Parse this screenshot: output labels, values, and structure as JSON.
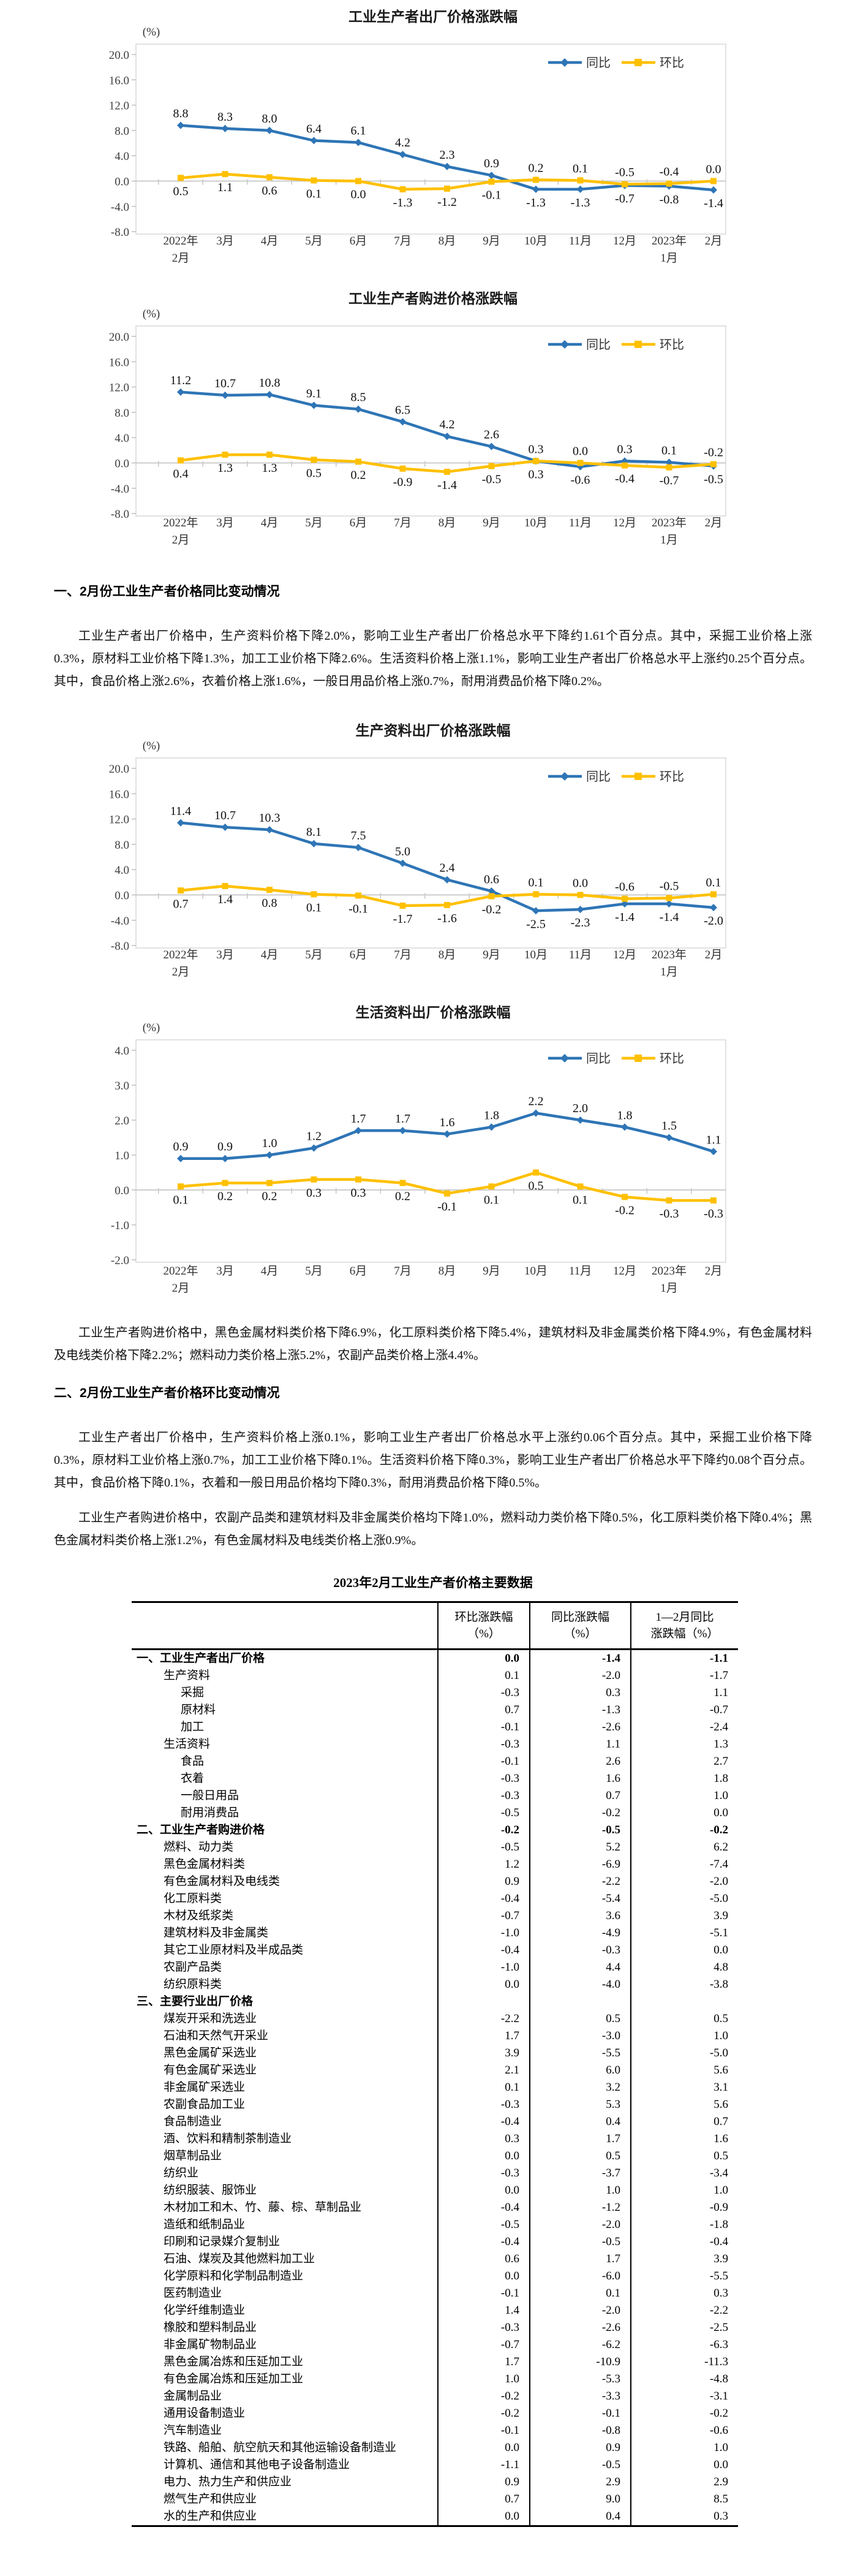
{
  "chart_data": [
    {
      "type": "line",
      "title": "工业生产者出厂价格涨跌幅",
      "unit": "(%)",
      "legend": [
        "同比",
        "环比"
      ],
      "legend_position": "top-right-inside",
      "grid": false,
      "y_ticks": [
        20,
        16,
        12,
        8,
        4,
        0,
        -4,
        -8
      ],
      "ylim": [
        -8,
        22
      ],
      "x_categories": [
        [
          "2022年",
          "2月"
        ],
        [
          "3月"
        ],
        [
          "4月"
        ],
        [
          "5月"
        ],
        [
          "6月"
        ],
        [
          "7月"
        ],
        [
          "8月"
        ],
        [
          "9月"
        ],
        [
          "10月"
        ],
        [
          "11月"
        ],
        [
          "12月"
        ],
        [
          "2023年",
          "1月"
        ],
        [
          "2月"
        ]
      ],
      "series": [
        {
          "name": "同比",
          "color": "#2E75B6",
          "marker": "diamond",
          "values": [
            8.8,
            8.3,
            8.0,
            6.4,
            6.1,
            4.2,
            2.3,
            0.9,
            -1.3,
            -1.3,
            -0.7,
            -0.8,
            -1.4
          ],
          "label_side": [
            "a",
            "a",
            "a",
            "a",
            "a",
            "a",
            "a",
            "a",
            "b",
            "b",
            "b",
            "b",
            "b"
          ]
        },
        {
          "name": "环比",
          "color": "#FFC000",
          "marker": "square",
          "values": [
            0.5,
            1.1,
            0.6,
            0.1,
            0.0,
            -1.3,
            -1.2,
            -0.1,
            0.2,
            0.1,
            -0.5,
            -0.4,
            0.0
          ],
          "label_side": [
            "b",
            "b",
            "b",
            "b",
            "b",
            "b",
            "b",
            "b",
            "a",
            "a",
            "a",
            "a",
            "a"
          ]
        }
      ]
    },
    {
      "type": "line",
      "title": "工业生产者购进价格涨跌幅",
      "unit": "(%)",
      "legend": [
        "同比",
        "环比"
      ],
      "legend_position": "top-right-inside",
      "grid": false,
      "y_ticks": [
        20,
        16,
        12,
        8,
        4,
        0,
        -4,
        -8
      ],
      "ylim": [
        -8,
        22
      ],
      "x_categories": [
        [
          "2022年",
          "2月"
        ],
        [
          "3月"
        ],
        [
          "4月"
        ],
        [
          "5月"
        ],
        [
          "6月"
        ],
        [
          "7月"
        ],
        [
          "8月"
        ],
        [
          "9月"
        ],
        [
          "10月"
        ],
        [
          "11月"
        ],
        [
          "12月"
        ],
        [
          "2023年",
          "1月"
        ],
        [
          "2月"
        ]
      ],
      "series": [
        {
          "name": "同比",
          "color": "#2E75B6",
          "marker": "diamond",
          "values": [
            11.2,
            10.7,
            10.8,
            9.1,
            8.5,
            6.5,
            4.2,
            2.6,
            0.3,
            -0.6,
            0.3,
            0.1,
            -0.5
          ],
          "label_side": [
            "a",
            "a",
            "a",
            "a",
            "a",
            "a",
            "a",
            "a",
            "a",
            "b",
            "a",
            "a",
            "b"
          ]
        },
        {
          "name": "环比",
          "color": "#FFC000",
          "marker": "square",
          "values": [
            0.4,
            1.3,
            1.3,
            0.5,
            0.2,
            -0.9,
            -1.4,
            -0.5,
            0.3,
            0.0,
            -0.4,
            -0.7,
            -0.2
          ],
          "label_side": [
            "b",
            "b",
            "b",
            "b",
            "b",
            "b",
            "b",
            "b",
            "b",
            "a",
            "b",
            "b",
            "a"
          ]
        }
      ]
    },
    {
      "type": "line",
      "title": "生产资料出厂价格涨跌幅",
      "unit": "(%)",
      "legend": [
        "同比",
        "环比"
      ],
      "legend_position": "top-right-inside",
      "grid": false,
      "y_ticks": [
        20,
        16,
        12,
        8,
        4,
        0,
        -4,
        -8
      ],
      "ylim": [
        -8,
        22
      ],
      "x_categories": [
        [
          "2022年",
          "2月"
        ],
        [
          "3月"
        ],
        [
          "4月"
        ],
        [
          "5月"
        ],
        [
          "6月"
        ],
        [
          "7月"
        ],
        [
          "8月"
        ],
        [
          "9月"
        ],
        [
          "10月"
        ],
        [
          "11月"
        ],
        [
          "12月"
        ],
        [
          "2023年",
          "1月"
        ],
        [
          "2月"
        ]
      ],
      "series": [
        {
          "name": "同比",
          "color": "#2E75B6",
          "marker": "diamond",
          "values": [
            11.4,
            10.7,
            10.3,
            8.1,
            7.5,
            5.0,
            2.4,
            0.6,
            -2.5,
            -2.3,
            -1.4,
            -1.4,
            -2.0
          ],
          "label_side": [
            "a",
            "a",
            "a",
            "a",
            "a",
            "a",
            "a",
            "a",
            "b",
            "b",
            "b",
            "b",
            "b"
          ]
        },
        {
          "name": "环比",
          "color": "#FFC000",
          "marker": "square",
          "values": [
            0.7,
            1.4,
            0.8,
            0.1,
            -0.1,
            -1.7,
            -1.6,
            -0.2,
            0.1,
            0.0,
            -0.6,
            -0.5,
            0.1
          ],
          "label_side": [
            "b",
            "b",
            "b",
            "b",
            "b",
            "b",
            "b",
            "b",
            "a",
            "a",
            "a",
            "a",
            "a"
          ]
        }
      ]
    },
    {
      "type": "line",
      "title": "生活资料出厂价格涨跌幅",
      "unit": "(%)",
      "legend": [
        "同比",
        "环比"
      ],
      "legend_position": "top-right-inside",
      "grid": false,
      "y_ticks": [
        4,
        3,
        2,
        1,
        0,
        -1,
        -2
      ],
      "ylim": [
        -2,
        4.5
      ],
      "x_categories": [
        [
          "2022年",
          "2月"
        ],
        [
          "3月"
        ],
        [
          "4月"
        ],
        [
          "5月"
        ],
        [
          "6月"
        ],
        [
          "7月"
        ],
        [
          "8月"
        ],
        [
          "9月"
        ],
        [
          "10月"
        ],
        [
          "11月"
        ],
        [
          "12月"
        ],
        [
          "2023年",
          "1月"
        ],
        [
          "2月"
        ]
      ],
      "series": [
        {
          "name": "同比",
          "color": "#2E75B6",
          "marker": "diamond",
          "values": [
            0.9,
            0.9,
            1.0,
            1.2,
            1.7,
            1.7,
            1.6,
            1.8,
            2.2,
            2.0,
            1.8,
            1.5,
            1.1
          ],
          "label_side": [
            "a",
            "a",
            "a",
            "a",
            "a",
            "a",
            "a",
            "a",
            "a",
            "a",
            "a",
            "a",
            "a"
          ]
        },
        {
          "name": "环比",
          "color": "#FFC000",
          "marker": "square",
          "values": [
            0.1,
            0.2,
            0.2,
            0.3,
            0.3,
            0.2,
            -0.1,
            0.1,
            0.5,
            0.1,
            -0.2,
            -0.3,
            -0.3
          ],
          "label_side": [
            "b",
            "b",
            "b",
            "b",
            "b",
            "b",
            "b",
            "b",
            "b",
            "b",
            "b",
            "b",
            "b"
          ]
        }
      ]
    }
  ],
  "sections": {
    "heading_yoy": "一、2月份工业生产者价格同比变动情况",
    "para_yoy": "工业生产者出厂价格中，生产资料价格下降2.0%，影响工业生产者出厂价格总水平下降约1.61个百分点。其中，采掘工业价格上涨0.3%，原材料工业价格下降1.3%，加工工业价格下降2.6%。生活资料价格上涨1.1%，影响工业生产者出厂价格总水平上涨约0.25个百分点。其中，食品价格上涨2.6%，衣着价格上涨1.6%，一般日用品价格上涨0.7%，耐用消费品价格下降0.2%。",
    "para_purchase_yoy": "工业生产者购进价格中，黑色金属材料类价格下降6.9%，化工原料类价格下降5.4%，建筑材料及非金属类价格下降4.9%，有色金属材料及电线类价格下降2.2%；燃料动力类价格上涨5.2%，农副产品类价格上涨4.4%。",
    "heading_mom": "二、2月份工业生产者价格环比变动情况",
    "para_mom": "工业生产者出厂价格中，生产资料价格上涨0.1%，影响工业生产者出厂价格总水平上涨约0.06个百分点。其中，采掘工业价格下降0.3%，原材料工业价格上涨0.7%，加工工业价格下降0.1%。生活资料价格下降0.3%，影响工业生产者出厂价格总水平下降约0.08个百分点。其中，食品价格下降0.1%，衣着和一般日用品价格均下降0.3%，耐用消费品价格下降0.5%。",
    "para_purchase_mom": "工业生产者购进价格中，农副产品类和建筑材料及非金属类价格均下降1.0%，燃料动力类价格下降0.5%，化工原料类价格下降0.4%；黑色金属材料类价格上涨1.2%，有色金属材料及电线类价格上涨0.9%。"
  },
  "table": {
    "title": "2023年2月工业生产者价格主要数据",
    "columns": [
      {
        "line1": "环比涨跌幅",
        "line2": "（%）"
      },
      {
        "line1": "同比涨跌幅",
        "line2": "（%）"
      },
      {
        "line1": "1—2月同比",
        "line2": "涨跌幅（%）"
      }
    ],
    "rows": [
      {
        "label": "一、工业生产者出厂价格",
        "indent": 0,
        "bold": true,
        "values": [
          "0.0",
          "-1.4",
          "-1.1"
        ]
      },
      {
        "label": "生产资料",
        "indent": 1,
        "bold": false,
        "values": [
          "0.1",
          "-2.0",
          "-1.7"
        ]
      },
      {
        "label": "采掘",
        "indent": 2,
        "bold": false,
        "values": [
          "-0.3",
          "0.3",
          "1.1"
        ]
      },
      {
        "label": "原材料",
        "indent": 2,
        "bold": false,
        "values": [
          "0.7",
          "-1.3",
          "-0.7"
        ]
      },
      {
        "label": "加工",
        "indent": 2,
        "bold": false,
        "values": [
          "-0.1",
          "-2.6",
          "-2.4"
        ]
      },
      {
        "label": "生活资料",
        "indent": 1,
        "bold": false,
        "values": [
          "-0.3",
          "1.1",
          "1.3"
        ]
      },
      {
        "label": "食品",
        "indent": 2,
        "bold": false,
        "values": [
          "-0.1",
          "2.6",
          "2.7"
        ]
      },
      {
        "label": "衣着",
        "indent": 2,
        "bold": false,
        "values": [
          "-0.3",
          "1.6",
          "1.8"
        ]
      },
      {
        "label": "一般日用品",
        "indent": 2,
        "bold": false,
        "values": [
          "-0.3",
          "0.7",
          "1.0"
        ]
      },
      {
        "label": "耐用消费品",
        "indent": 2,
        "bold": false,
        "values": [
          "-0.5",
          "-0.2",
          "0.0"
        ]
      },
      {
        "label": "二、工业生产者购进价格",
        "indent": 0,
        "bold": true,
        "values": [
          "-0.2",
          "-0.5",
          "-0.2"
        ]
      },
      {
        "label": "燃料、动力类",
        "indent": 1,
        "bold": false,
        "values": [
          "-0.5",
          "5.2",
          "6.2"
        ]
      },
      {
        "label": "黑色金属材料类",
        "indent": 1,
        "bold": false,
        "values": [
          "1.2",
          "-6.9",
          "-7.4"
        ]
      },
      {
        "label": "有色金属材料及电线类",
        "indent": 1,
        "bold": false,
        "values": [
          "0.9",
          "-2.2",
          "-2.0"
        ]
      },
      {
        "label": "化工原料类",
        "indent": 1,
        "bold": false,
        "values": [
          "-0.4",
          "-5.4",
          "-5.0"
        ]
      },
      {
        "label": "木材及纸浆类",
        "indent": 1,
        "bold": false,
        "values": [
          "-0.7",
          "3.6",
          "3.9"
        ]
      },
      {
        "label": "建筑材料及非金属类",
        "indent": 1,
        "bold": false,
        "values": [
          "-1.0",
          "-4.9",
          "-5.1"
        ]
      },
      {
        "label": "其它工业原材料及半成品类",
        "indent": 1,
        "bold": false,
        "values": [
          "-0.4",
          "-0.3",
          "0.0"
        ]
      },
      {
        "label": "农副产品类",
        "indent": 1,
        "bold": false,
        "values": [
          "-1.0",
          "4.4",
          "4.8"
        ]
      },
      {
        "label": "纺织原料类",
        "indent": 1,
        "bold": false,
        "values": [
          "0.0",
          "-4.0",
          "-3.8"
        ]
      },
      {
        "label": "三、主要行业出厂价格",
        "indent": 0,
        "bold": true,
        "values": [
          "",
          "",
          ""
        ]
      },
      {
        "label": "煤炭开采和洗选业",
        "indent": 1,
        "bold": false,
        "values": [
          "-2.2",
          "0.5",
          "0.5"
        ]
      },
      {
        "label": "石油和天然气开采业",
        "indent": 1,
        "bold": false,
        "values": [
          "1.7",
          "-3.0",
          "1.0"
        ]
      },
      {
        "label": "黑色金属矿采选业",
        "indent": 1,
        "bold": false,
        "values": [
          "3.9",
          "-5.5",
          "-5.0"
        ]
      },
      {
        "label": "有色金属矿采选业",
        "indent": 1,
        "bold": false,
        "values": [
          "2.1",
          "6.0",
          "5.6"
        ]
      },
      {
        "label": "非金属矿采选业",
        "indent": 1,
        "bold": false,
        "values": [
          "0.1",
          "3.2",
          "3.1"
        ]
      },
      {
        "label": "农副食品加工业",
        "indent": 1,
        "bold": false,
        "values": [
          "-0.3",
          "5.3",
          "5.6"
        ]
      },
      {
        "label": "食品制造业",
        "indent": 1,
        "bold": false,
        "values": [
          "-0.4",
          "0.4",
          "0.7"
        ]
      },
      {
        "label": "酒、饮料和精制茶制造业",
        "indent": 1,
        "bold": false,
        "values": [
          "0.3",
          "1.7",
          "1.6"
        ]
      },
      {
        "label": "烟草制品业",
        "indent": 1,
        "bold": false,
        "values": [
          "0.0",
          "0.5",
          "0.5"
        ]
      },
      {
        "label": "纺织业",
        "indent": 1,
        "bold": false,
        "values": [
          "-0.3",
          "-3.7",
          "-3.4"
        ]
      },
      {
        "label": "纺织服装、服饰业",
        "indent": 1,
        "bold": false,
        "values": [
          "0.0",
          "1.0",
          "1.0"
        ]
      },
      {
        "label": "木材加工和木、竹、藤、棕、草制品业",
        "indent": 1,
        "bold": false,
        "values": [
          "-0.4",
          "-1.2",
          "-0.9"
        ]
      },
      {
        "label": "造纸和纸制品业",
        "indent": 1,
        "bold": false,
        "values": [
          "-0.5",
          "-2.0",
          "-1.8"
        ]
      },
      {
        "label": "印刷和记录媒介复制业",
        "indent": 1,
        "bold": false,
        "values": [
          "-0.4",
          "-0.5",
          "-0.4"
        ]
      },
      {
        "label": "石油、煤炭及其他燃料加工业",
        "indent": 1,
        "bold": false,
        "values": [
          "0.6",
          "1.7",
          "3.9"
        ]
      },
      {
        "label": "化学原料和化学制品制造业",
        "indent": 1,
        "bold": false,
        "values": [
          "0.0",
          "-6.0",
          "-5.5"
        ]
      },
      {
        "label": "医药制造业",
        "indent": 1,
        "bold": false,
        "values": [
          "-0.1",
          "0.1",
          "0.3"
        ]
      },
      {
        "label": "化学纤维制造业",
        "indent": 1,
        "bold": false,
        "values": [
          "1.4",
          "-2.0",
          "-2.2"
        ]
      },
      {
        "label": "橡胶和塑料制品业",
        "indent": 1,
        "bold": false,
        "values": [
          "-0.3",
          "-2.6",
          "-2.5"
        ]
      },
      {
        "label": "非金属矿物制品业",
        "indent": 1,
        "bold": false,
        "values": [
          "-0.7",
          "-6.2",
          "-6.3"
        ]
      },
      {
        "label": "黑色金属冶炼和压延加工业",
        "indent": 1,
        "bold": false,
        "values": [
          "1.7",
          "-10.9",
          "-11.3"
        ]
      },
      {
        "label": "有色金属冶炼和压延加工业",
        "indent": 1,
        "bold": false,
        "values": [
          "1.0",
          "-5.3",
          "-4.8"
        ]
      },
      {
        "label": "金属制品业",
        "indent": 1,
        "bold": false,
        "values": [
          "-0.2",
          "-3.3",
          "-3.1"
        ]
      },
      {
        "label": "通用设备制造业",
        "indent": 1,
        "bold": false,
        "values": [
          "-0.2",
          "-0.1",
          "-0.2"
        ]
      },
      {
        "label": "汽车制造业",
        "indent": 1,
        "bold": false,
        "values": [
          "-0.1",
          "-0.8",
          "-0.6"
        ]
      },
      {
        "label": "铁路、船舶、航空航天和其他运输设备制造业",
        "indent": 1,
        "bold": false,
        "values": [
          "0.0",
          "0.9",
          "1.0"
        ]
      },
      {
        "label": "计算机、通信和其他电子设备制造业",
        "indent": 1,
        "bold": false,
        "values": [
          "-1.1",
          "-0.5",
          "0.0"
        ]
      },
      {
        "label": "电力、热力生产和供应业",
        "indent": 1,
        "bold": false,
        "values": [
          "0.9",
          "2.9",
          "2.9"
        ]
      },
      {
        "label": "燃气生产和供应业",
        "indent": 1,
        "bold": false,
        "values": [
          "0.7",
          "9.0",
          "8.5"
        ]
      },
      {
        "label": "水的生产和供应业",
        "indent": 1,
        "bold": false,
        "values": [
          "0.0",
          "0.4",
          "0.3"
        ]
      }
    ]
  }
}
